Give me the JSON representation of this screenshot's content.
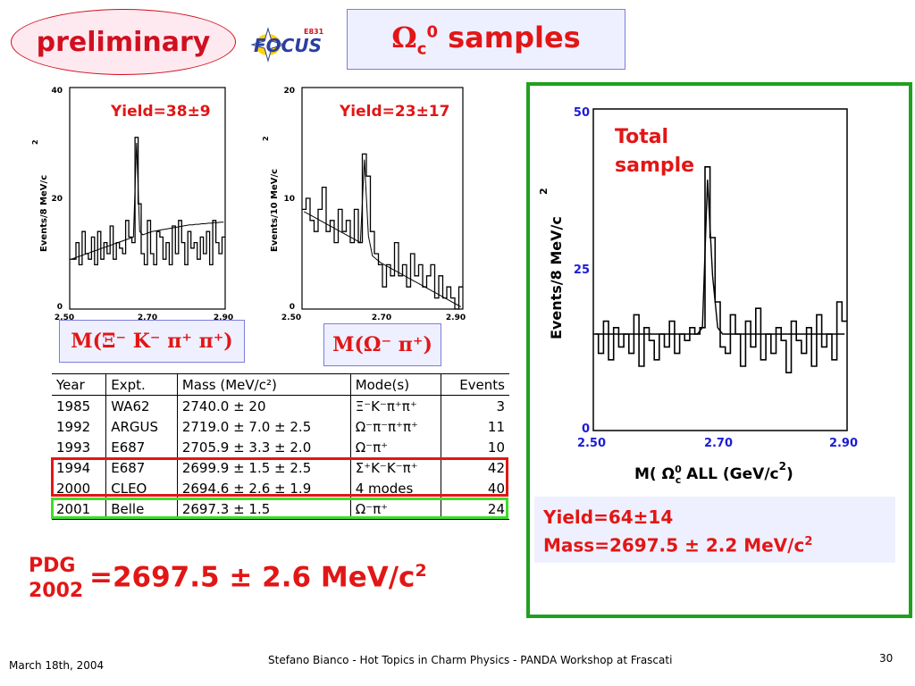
{
  "preliminary_label": "preliminary",
  "logo": {
    "text": "FOCUS",
    "tag": "E831"
  },
  "title": {
    "symbol": "Ω",
    "sub": "c",
    "sup": "0",
    "rest": "samples"
  },
  "plot1": {
    "yield": "Yield=38±9",
    "ylabel": "Events/8 MeV/c",
    "ylabel_sup": "2",
    "yticks": [
      "40",
      "20",
      "0"
    ],
    "xticks": [
      "2.50",
      "2.70",
      "2.90"
    ],
    "mode": "M(Ξ⁻ K⁻ π⁺ π⁺)"
  },
  "plot2": {
    "yield": "Yield=23±17",
    "ylabel": "Events/10 MeV/c",
    "ylabel_sup": "2",
    "yticks": [
      "20",
      "10",
      "0"
    ],
    "xticks": [
      "2.50",
      "2.70",
      "2.90"
    ],
    "mode": "M(Ω⁻ π⁺)"
  },
  "plot3": {
    "label_line1": "Total",
    "label_line2": "sample",
    "ylabel": "Events/8 MeV/c",
    "ylabel_sup": "2",
    "yticks": [
      "50",
      "25",
      "0"
    ],
    "xticks": [
      "2.50",
      "2.70",
      "2.90"
    ],
    "xlabel": "M( Ω",
    "xlabel_sup": "0",
    "xlabel_sub": "c",
    "xlabel_rest": " ALL (GeV/c",
    "xlabel_unit_sup": "2",
    "xlabel_close": ")"
  },
  "table": {
    "headers": [
      "Year",
      "Expt.",
      "Mass (MeV/c²)",
      "Mode(s)",
      "Events"
    ],
    "rows": [
      [
        "1985",
        "WA62",
        "2740.0 ± 20",
        "Ξ⁻K⁻π⁺π⁺",
        "3"
      ],
      [
        "1992",
        "ARGUS",
        "2719.0 ± 7.0 ± 2.5",
        "Ω⁻π⁻π⁺π⁺",
        "11"
      ],
      [
        "1993",
        "E687",
        "2705.9 ± 3.3 ± 2.0",
        "Ω⁻π⁺",
        "10"
      ],
      [
        "1994",
        "E687",
        "2699.9 ± 1.5 ± 2.5",
        "Σ⁺K⁻K⁻π⁺",
        "42"
      ],
      [
        "2000",
        "CLEO",
        "2694.6 ± 2.6 ± 1.9",
        "4 modes",
        "40"
      ],
      [
        "2001",
        "Belle",
        "2697.3 ± 1.5",
        "Ω⁻π⁺",
        "24"
      ]
    ]
  },
  "pdg": {
    "line1": "PDG",
    "line2": "2002",
    "value": "=2697.5 ± 2.6 MeV/c",
    "sup": "2"
  },
  "result": {
    "yield": "Yield=64±14",
    "mass": "Mass=2697.5 ± 2.2 MeV/c",
    "mass_sup": "2"
  },
  "footer": {
    "date": "March 18th, 2004",
    "text": "Stefano Bianco - Hot Topics in Charm Physics - PANDA Workshop at Frascati",
    "page": "30"
  },
  "chart_data": [
    {
      "type": "line",
      "title": "",
      "ylabel": "Events/8 MeV/c2",
      "xlabel": "",
      "xlim": [
        2.5,
        2.9
      ],
      "ylim": [
        0,
        40
      ],
      "xticks": [
        2.5,
        2.7,
        2.9
      ],
      "yticks": [
        0,
        20,
        40
      ],
      "annotation": "Yield=38±9",
      "series": [
        {
          "values": [
            9,
            9,
            12,
            8,
            14,
            10,
            9,
            13,
            8,
            14,
            9,
            12,
            10,
            15,
            9,
            12,
            11,
            10,
            16,
            13,
            12,
            31,
            19,
            10,
            8,
            16,
            10,
            8,
            14,
            13,
            9,
            12,
            8,
            15,
            10,
            16,
            12,
            8,
            14,
            11,
            12,
            9,
            13,
            10,
            14,
            8,
            16,
            12,
            10,
            13
          ]
        },
        {
          "values": [
            9.0,
            9.2,
            9.4,
            9.6,
            9.8,
            10.0,
            10.2,
            10.4,
            10.6,
            10.8,
            11.0,
            11.2,
            11.4,
            11.6,
            11.8,
            12.0,
            12.2,
            12.4,
            12.6,
            12.8,
            13.0,
            30.0,
            14.0,
            13.4,
            13.6,
            13.8,
            14.0,
            14.1,
            14.2,
            14.3,
            14.4,
            14.5,
            14.6,
            14.7,
            14.8,
            14.9,
            15.0,
            15.1,
            15.2,
            15.2,
            15.3,
            15.3,
            15.4,
            15.4,
            15.5,
            15.5,
            15.6,
            15.6,
            15.7,
            15.7
          ]
        }
      ]
    },
    {
      "type": "line",
      "title": "",
      "ylabel": "Events/10 MeV/c2",
      "xlabel": "",
      "xlim": [
        2.5,
        2.9
      ],
      "ylim": [
        0,
        20
      ],
      "xticks": [
        2.5,
        2.7,
        2.9
      ],
      "yticks": [
        0,
        10,
        20
      ],
      "annotation": "Yield=23±17",
      "series": [
        {
          "values": [
            9,
            10,
            8,
            7,
            9,
            11,
            7,
            8,
            6,
            9,
            7,
            8,
            6,
            9,
            6,
            14,
            12,
            7,
            5,
            4,
            2,
            4,
            3,
            6,
            3,
            4,
            2,
            5,
            3,
            4,
            2,
            3,
            4,
            1,
            3,
            1,
            2,
            1,
            0,
            2
          ]
        },
        {
          "values": [
            8.8,
            8.6,
            8.4,
            8.2,
            8.0,
            7.8,
            7.6,
            7.4,
            7.2,
            7.0,
            6.8,
            6.6,
            6.4,
            6.2,
            6.0,
            13.5,
            6.6,
            4.8,
            4.5,
            4.2,
            4.0,
            3.8,
            3.6,
            3.4,
            3.2,
            3.0,
            2.8,
            2.6,
            2.4,
            2.2,
            2.0,
            1.8,
            1.6,
            1.4,
            1.2,
            1.0,
            0.8,
            0.6,
            0.4,
            0.2
          ]
        }
      ]
    },
    {
      "type": "line",
      "title": "",
      "ylabel": "Events/8 MeV/c2",
      "xlabel": "M( Ωc0 ALL (GeV/c2)",
      "xlim": [
        2.5,
        2.9
      ],
      "ylim": [
        0,
        50
      ],
      "xticks": [
        2.5,
        2.7,
        2.9
      ],
      "yticks": [
        0,
        25,
        50
      ],
      "annotation": "Total sample",
      "series": [
        {
          "values": [
            15,
            12,
            17,
            11,
            16,
            13,
            15,
            12,
            18,
            10,
            16,
            14,
            11,
            15,
            13,
            17,
            12,
            15,
            14,
            16,
            15,
            16,
            41,
            30,
            20,
            13,
            12,
            18,
            15,
            10,
            17,
            13,
            19,
            11,
            15,
            12,
            16,
            14,
            9,
            17,
            14,
            12,
            16,
            10,
            18,
            13,
            15,
            11,
            20,
            17
          ]
        },
        {
          "values": [
            15,
            15,
            15,
            15,
            15,
            15,
            15,
            15,
            15,
            15,
            15,
            15,
            15,
            15,
            15,
            15,
            15,
            15,
            15,
            15,
            15,
            16,
            39,
            24,
            16,
            15,
            15,
            15,
            15,
            15,
            15,
            15,
            15,
            15,
            15,
            15,
            15,
            15,
            15,
            15,
            15,
            15,
            15,
            15,
            15,
            15,
            15,
            15,
            15,
            15
          ]
        }
      ]
    }
  ]
}
